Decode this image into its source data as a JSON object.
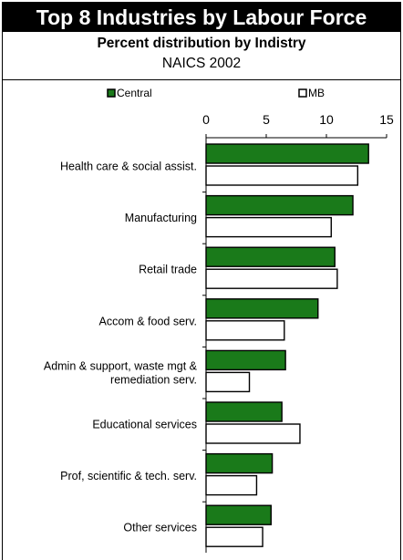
{
  "header": {
    "title": "Top 8 Industries by Labour Force",
    "subtitle": "Percent distribution by Indistry",
    "subtitle2": "NAICS 2002"
  },
  "colors": {
    "central_fill": "#1a7a1a",
    "mb_fill": "#ffffff",
    "bar_stroke": "#000000"
  },
  "chart_data": {
    "type": "bar",
    "orientation": "horizontal",
    "categories": [
      "Health care & social assist.",
      "Manufacturing",
      "Retail trade",
      "Accom & food serv.",
      [
        "Admin & support, waste mgt &",
        "remediation serv."
      ],
      "Educational services",
      "Prof, scientific & tech. serv.",
      "Other services"
    ],
    "series": [
      {
        "name": "Central",
        "values": [
          13.5,
          12.2,
          10.7,
          9.3,
          6.6,
          6.3,
          5.5,
          5.4
        ]
      },
      {
        "name": "MB",
        "values": [
          12.6,
          10.4,
          10.9,
          6.5,
          3.6,
          7.8,
          4.2,
          4.7
        ]
      }
    ],
    "xlim": [
      0,
      15
    ],
    "xticks": [
      0,
      5,
      10,
      15
    ],
    "tick_position": "top",
    "legend": "top",
    "grid": false,
    "title": "Top 8 Industries by Labour Force"
  }
}
